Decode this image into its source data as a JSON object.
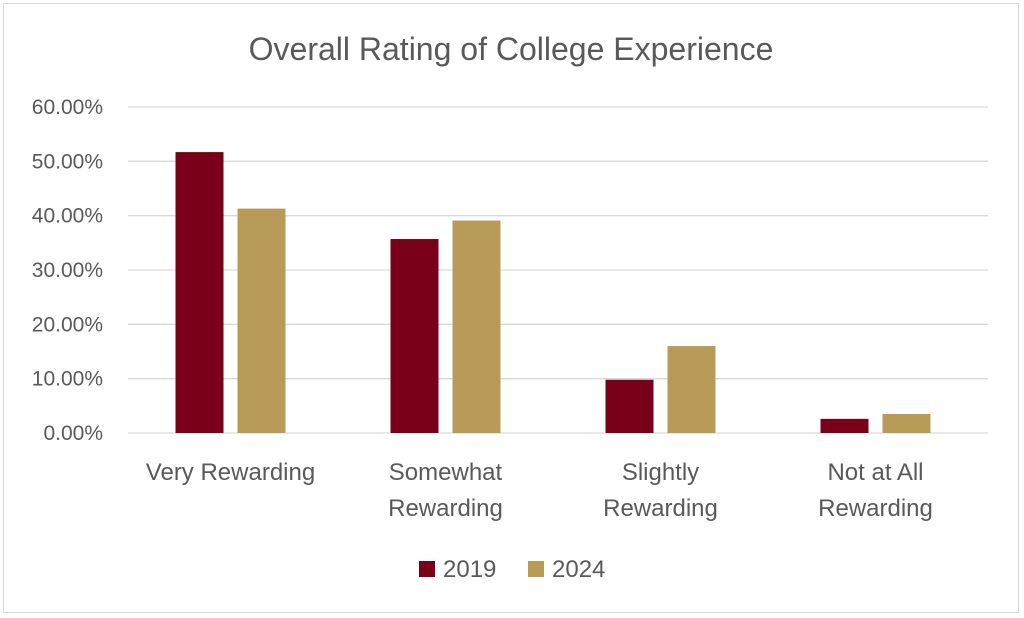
{
  "chart_data": {
    "type": "bar",
    "title": "Overall Rating of College Experience",
    "categories": [
      [
        "Very Rewarding"
      ],
      [
        "Somewhat",
        "Rewarding"
      ],
      [
        "Slightly",
        "Rewarding"
      ],
      [
        "Not at All",
        "Rewarding"
      ]
    ],
    "series": [
      {
        "name": "2019",
        "color": "#7a0019",
        "values": [
          51.7,
          35.7,
          9.8,
          2.6
        ]
      },
      {
        "name": "2024",
        "color": "#b99b58",
        "values": [
          41.3,
          39.1,
          16.0,
          3.5
        ]
      }
    ],
    "y_ticks": [
      "0.00%",
      "10.00%",
      "20.00%",
      "30.00%",
      "40.00%",
      "50.00%",
      "60.00%"
    ],
    "ylim": [
      0,
      60
    ],
    "xlabel": "",
    "ylabel": "",
    "grid": true,
    "legend_position": "bottom"
  }
}
